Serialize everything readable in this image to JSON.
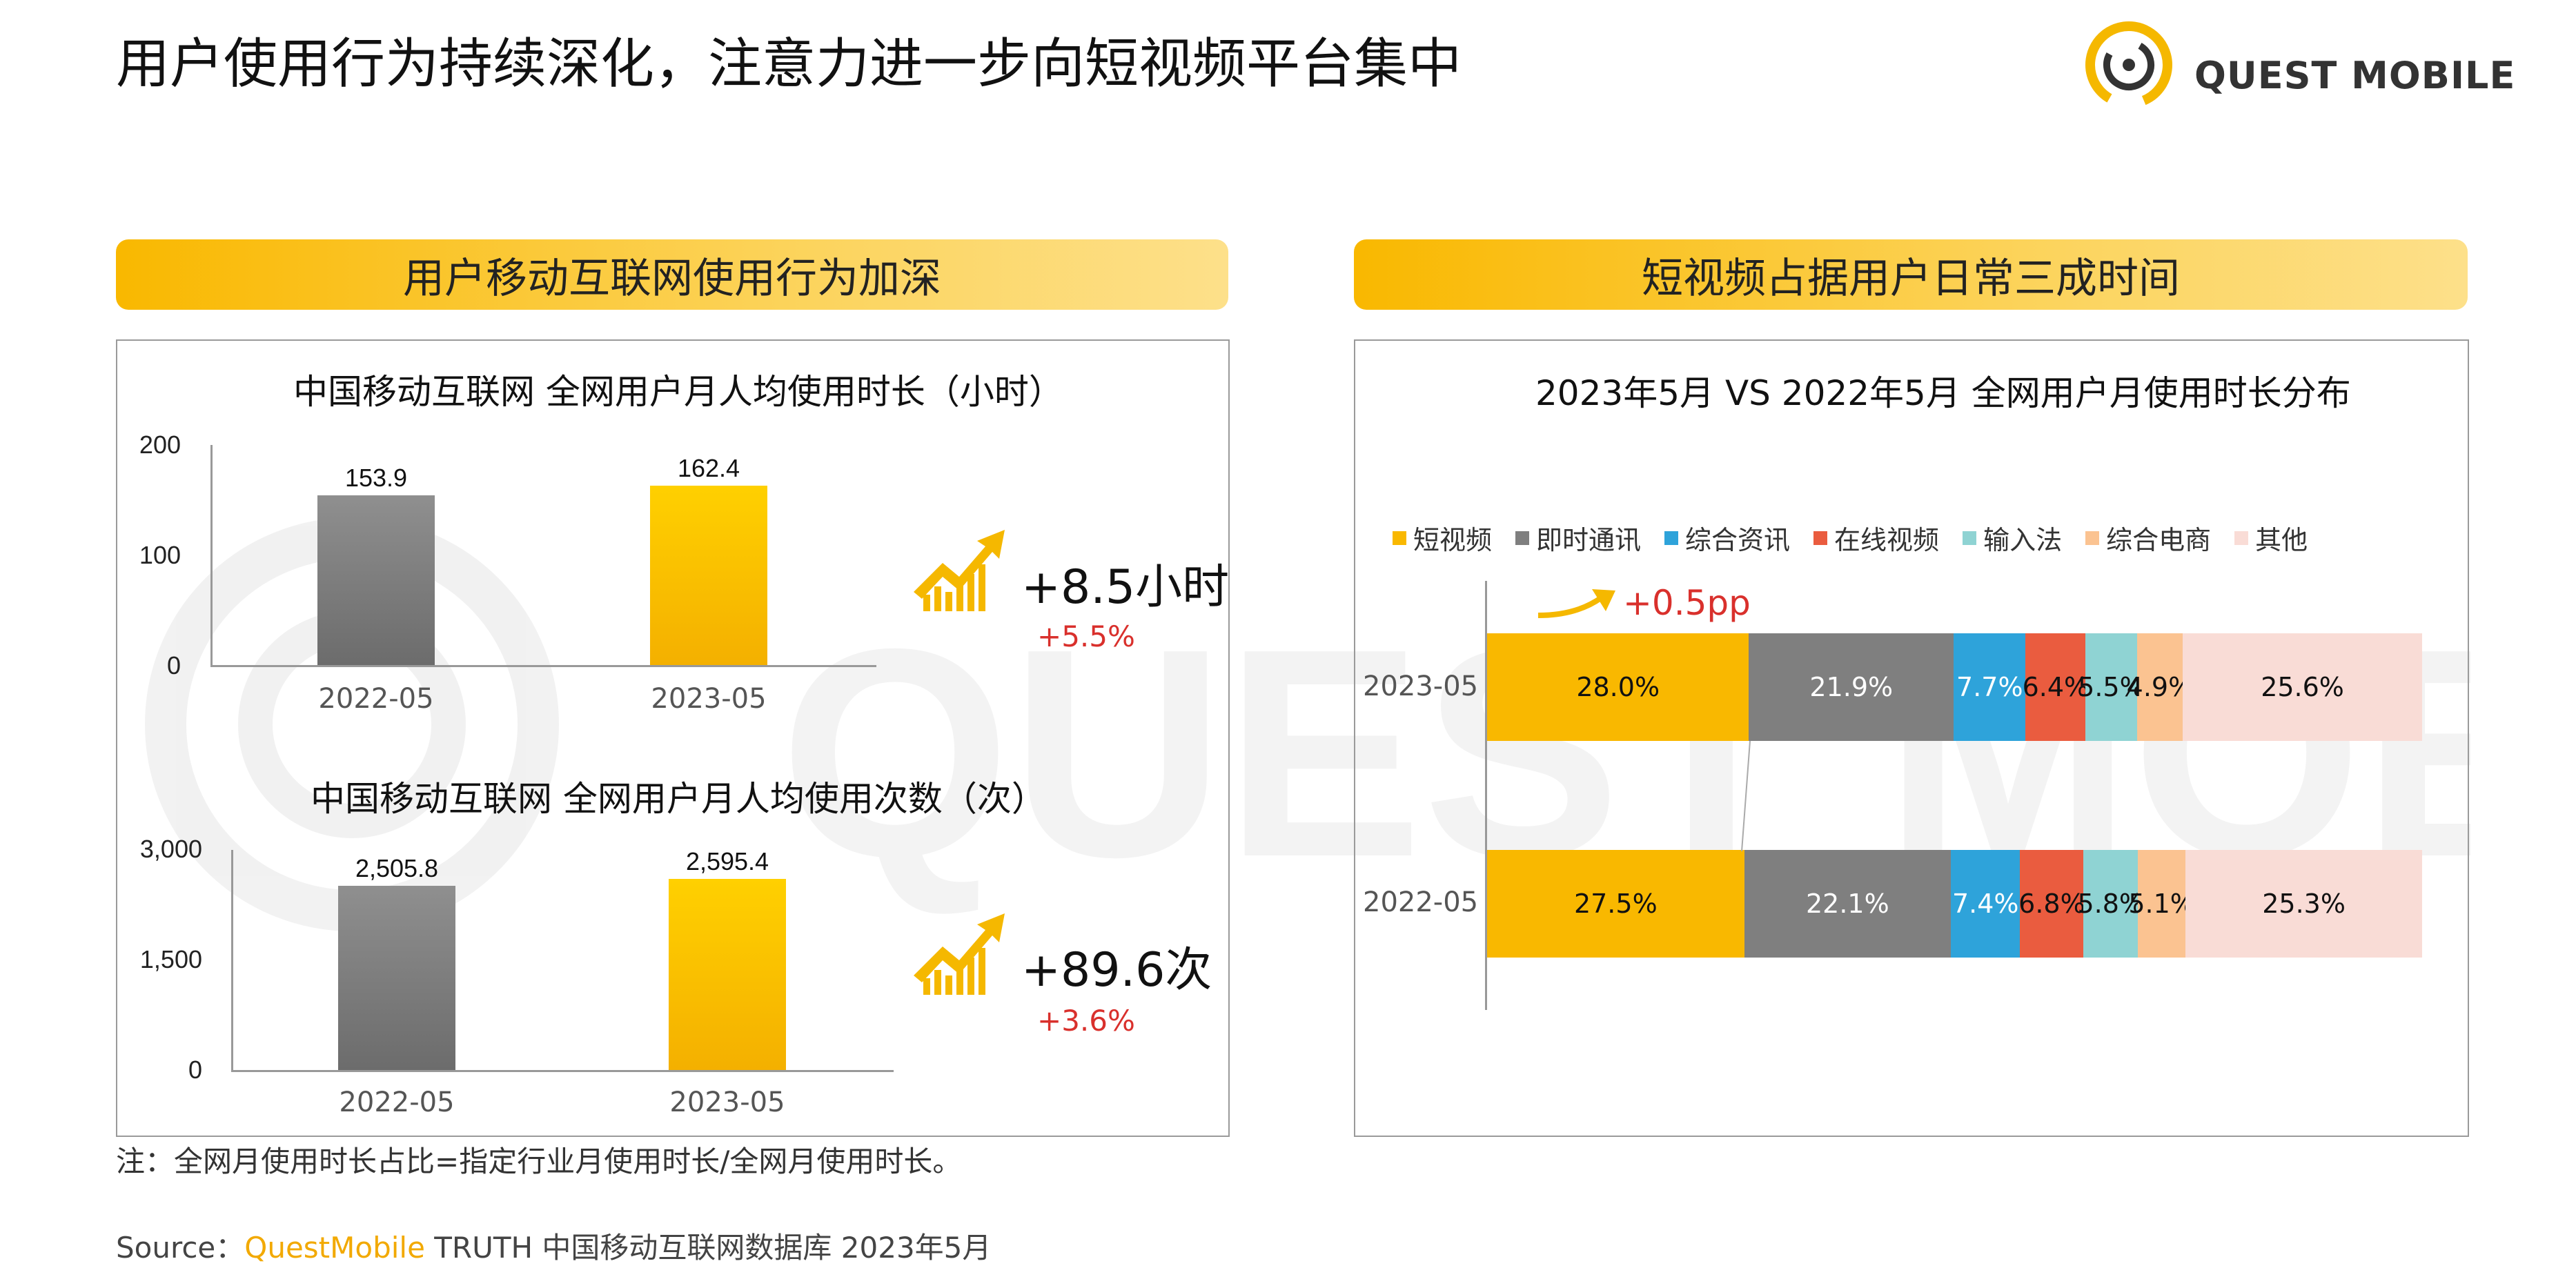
{
  "page": {
    "title": "用户使用行为持续深化，注意力进一步向短视频平台集中",
    "logo_text": "QUEST MOBILE",
    "note": "注：全网月使用时长占比=指定行业月使用时长/全网月使用时长。",
    "source_prefix": "Source：",
    "source_brand": "QuestMobile",
    "source_rest": " TRUTH 中国移动互联网数据库 2023年5月"
  },
  "left_section": {
    "banner": "用户移动互联网使用行为加深",
    "duration": {
      "delta_main": "+8.5小时",
      "delta_pct": "+5.5%"
    },
    "frequency": {
      "delta_main": "+89.6次",
      "delta_pct": "+3.6%"
    }
  },
  "right_section": {
    "banner": "短视频占据用户日常三成时间",
    "growth_note": "+0.5pp"
  },
  "colors": {
    "gold": "#f9b800",
    "gray": "#808080",
    "accent_red": "#d9302c",
    "brand_yellow": "#f2a900"
  },
  "chart_data": [
    {
      "type": "bar",
      "title": "中国移动互联网 全网用户月人均使用时长（小时）",
      "categories": [
        "2022-05",
        "2023-05"
      ],
      "values": [
        153.9,
        162.4
      ],
      "value_labels": [
        "153.9",
        "162.4"
      ],
      "yticks": [
        "0",
        "100",
        "200"
      ],
      "ylim": [
        0,
        200
      ],
      "colors": [
        "#808080",
        "#f9b800"
      ]
    },
    {
      "type": "bar",
      "title": "中国移动互联网 全网用户月人均使用次数（次）",
      "categories": [
        "2022-05",
        "2023-05"
      ],
      "values": [
        2505.8,
        2595.4
      ],
      "value_labels": [
        "2,505.8",
        "2,595.4"
      ],
      "yticks": [
        "0",
        "1,500",
        "3,000"
      ],
      "ylim": [
        0,
        3000
      ],
      "colors": [
        "#808080",
        "#f9b800"
      ]
    },
    {
      "type": "bar",
      "stacked": true,
      "orientation": "horizontal",
      "title": "2023年5月 VS 2022年5月 全网用户月使用时长分布",
      "categories": [
        "2023-05",
        "2022-05"
      ],
      "legend_position": "top",
      "series": [
        {
          "name": "短视频",
          "color": "#f9b800",
          "values": [
            28.0,
            27.5
          ],
          "labels": [
            "28.0%",
            "27.5%"
          ]
        },
        {
          "name": "即时通讯",
          "color": "#7f7f7f",
          "values": [
            21.9,
            22.1
          ],
          "labels": [
            "21.9%",
            "22.1%"
          ]
        },
        {
          "name": "综合资讯",
          "color": "#2ea3da",
          "values": [
            7.7,
            7.4
          ],
          "labels": [
            "7.7%",
            "7.4%"
          ]
        },
        {
          "name": "在线视频",
          "color": "#ea5c3f",
          "values": [
            6.4,
            6.8
          ],
          "labels": [
            "6.4%",
            "6.8%"
          ]
        },
        {
          "name": "输入法",
          "color": "#8fd3d3",
          "values": [
            5.5,
            5.8
          ],
          "labels": [
            "5.5%",
            "5.8%"
          ]
        },
        {
          "name": "综合电商",
          "color": "#fbc391",
          "values": [
            4.9,
            5.1
          ],
          "labels": [
            "4.9%",
            "5.1%"
          ]
        },
        {
          "name": "其他",
          "color": "#f9dcd6",
          "values": [
            25.6,
            25.3
          ],
          "labels": [
            "25.6%",
            "25.3%"
          ]
        }
      ]
    }
  ]
}
